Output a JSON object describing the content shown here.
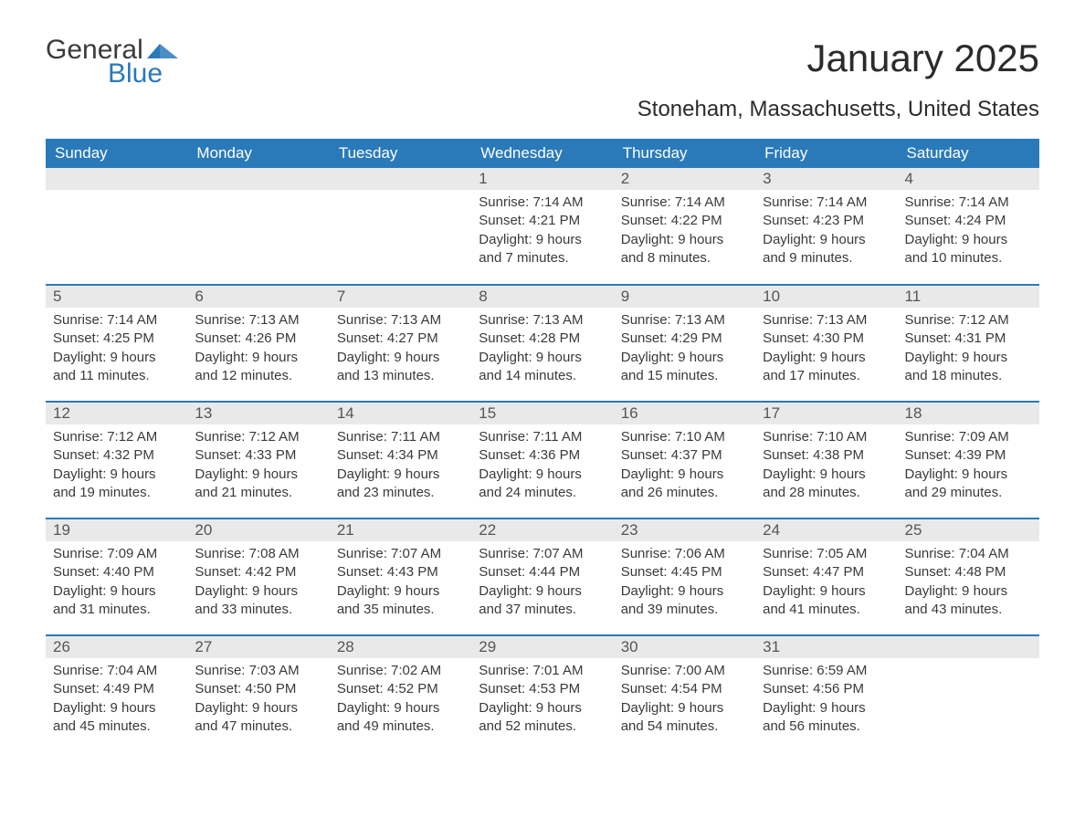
{
  "logo": {
    "word1": "General",
    "word2": "Blue"
  },
  "title": "January 2025",
  "location": "Stoneham, Massachusetts, United States",
  "colors": {
    "header_bg": "#2a7ab9",
    "header_text": "#ffffff",
    "daynum_bg": "#e9e9e9",
    "border": "#2a7ab9",
    "text": "#3a3a3a",
    "logo_accent": "#2a7ab9"
  },
  "weekdays": [
    "Sunday",
    "Monday",
    "Tuesday",
    "Wednesday",
    "Thursday",
    "Friday",
    "Saturday"
  ],
  "weeks": [
    [
      null,
      null,
      null,
      {
        "n": "1",
        "sr": "7:14 AM",
        "ss": "4:21 PM",
        "dl": "9 hours and 7 minutes."
      },
      {
        "n": "2",
        "sr": "7:14 AM",
        "ss": "4:22 PM",
        "dl": "9 hours and 8 minutes."
      },
      {
        "n": "3",
        "sr": "7:14 AM",
        "ss": "4:23 PM",
        "dl": "9 hours and 9 minutes."
      },
      {
        "n": "4",
        "sr": "7:14 AM",
        "ss": "4:24 PM",
        "dl": "9 hours and 10 minutes."
      }
    ],
    [
      {
        "n": "5",
        "sr": "7:14 AM",
        "ss": "4:25 PM",
        "dl": "9 hours and 11 minutes."
      },
      {
        "n": "6",
        "sr": "7:13 AM",
        "ss": "4:26 PM",
        "dl": "9 hours and 12 minutes."
      },
      {
        "n": "7",
        "sr": "7:13 AM",
        "ss": "4:27 PM",
        "dl": "9 hours and 13 minutes."
      },
      {
        "n": "8",
        "sr": "7:13 AM",
        "ss": "4:28 PM",
        "dl": "9 hours and 14 minutes."
      },
      {
        "n": "9",
        "sr": "7:13 AM",
        "ss": "4:29 PM",
        "dl": "9 hours and 15 minutes."
      },
      {
        "n": "10",
        "sr": "7:13 AM",
        "ss": "4:30 PM",
        "dl": "9 hours and 17 minutes."
      },
      {
        "n": "11",
        "sr": "7:12 AM",
        "ss": "4:31 PM",
        "dl": "9 hours and 18 minutes."
      }
    ],
    [
      {
        "n": "12",
        "sr": "7:12 AM",
        "ss": "4:32 PM",
        "dl": "9 hours and 19 minutes."
      },
      {
        "n": "13",
        "sr": "7:12 AM",
        "ss": "4:33 PM",
        "dl": "9 hours and 21 minutes."
      },
      {
        "n": "14",
        "sr": "7:11 AM",
        "ss": "4:34 PM",
        "dl": "9 hours and 23 minutes."
      },
      {
        "n": "15",
        "sr": "7:11 AM",
        "ss": "4:36 PM",
        "dl": "9 hours and 24 minutes."
      },
      {
        "n": "16",
        "sr": "7:10 AM",
        "ss": "4:37 PM",
        "dl": "9 hours and 26 minutes."
      },
      {
        "n": "17",
        "sr": "7:10 AM",
        "ss": "4:38 PM",
        "dl": "9 hours and 28 minutes."
      },
      {
        "n": "18",
        "sr": "7:09 AM",
        "ss": "4:39 PM",
        "dl": "9 hours and 29 minutes."
      }
    ],
    [
      {
        "n": "19",
        "sr": "7:09 AM",
        "ss": "4:40 PM",
        "dl": "9 hours and 31 minutes."
      },
      {
        "n": "20",
        "sr": "7:08 AM",
        "ss": "4:42 PM",
        "dl": "9 hours and 33 minutes."
      },
      {
        "n": "21",
        "sr": "7:07 AM",
        "ss": "4:43 PM",
        "dl": "9 hours and 35 minutes."
      },
      {
        "n": "22",
        "sr": "7:07 AM",
        "ss": "4:44 PM",
        "dl": "9 hours and 37 minutes."
      },
      {
        "n": "23",
        "sr": "7:06 AM",
        "ss": "4:45 PM",
        "dl": "9 hours and 39 minutes."
      },
      {
        "n": "24",
        "sr": "7:05 AM",
        "ss": "4:47 PM",
        "dl": "9 hours and 41 minutes."
      },
      {
        "n": "25",
        "sr": "7:04 AM",
        "ss": "4:48 PM",
        "dl": "9 hours and 43 minutes."
      }
    ],
    [
      {
        "n": "26",
        "sr": "7:04 AM",
        "ss": "4:49 PM",
        "dl": "9 hours and 45 minutes."
      },
      {
        "n": "27",
        "sr": "7:03 AM",
        "ss": "4:50 PM",
        "dl": "9 hours and 47 minutes."
      },
      {
        "n": "28",
        "sr": "7:02 AM",
        "ss": "4:52 PM",
        "dl": "9 hours and 49 minutes."
      },
      {
        "n": "29",
        "sr": "7:01 AM",
        "ss": "4:53 PM",
        "dl": "9 hours and 52 minutes."
      },
      {
        "n": "30",
        "sr": "7:00 AM",
        "ss": "4:54 PM",
        "dl": "9 hours and 54 minutes."
      },
      {
        "n": "31",
        "sr": "6:59 AM",
        "ss": "4:56 PM",
        "dl": "9 hours and 56 minutes."
      },
      null
    ]
  ],
  "labels": {
    "sunrise": "Sunrise: ",
    "sunset": "Sunset: ",
    "daylight": "Daylight: "
  }
}
